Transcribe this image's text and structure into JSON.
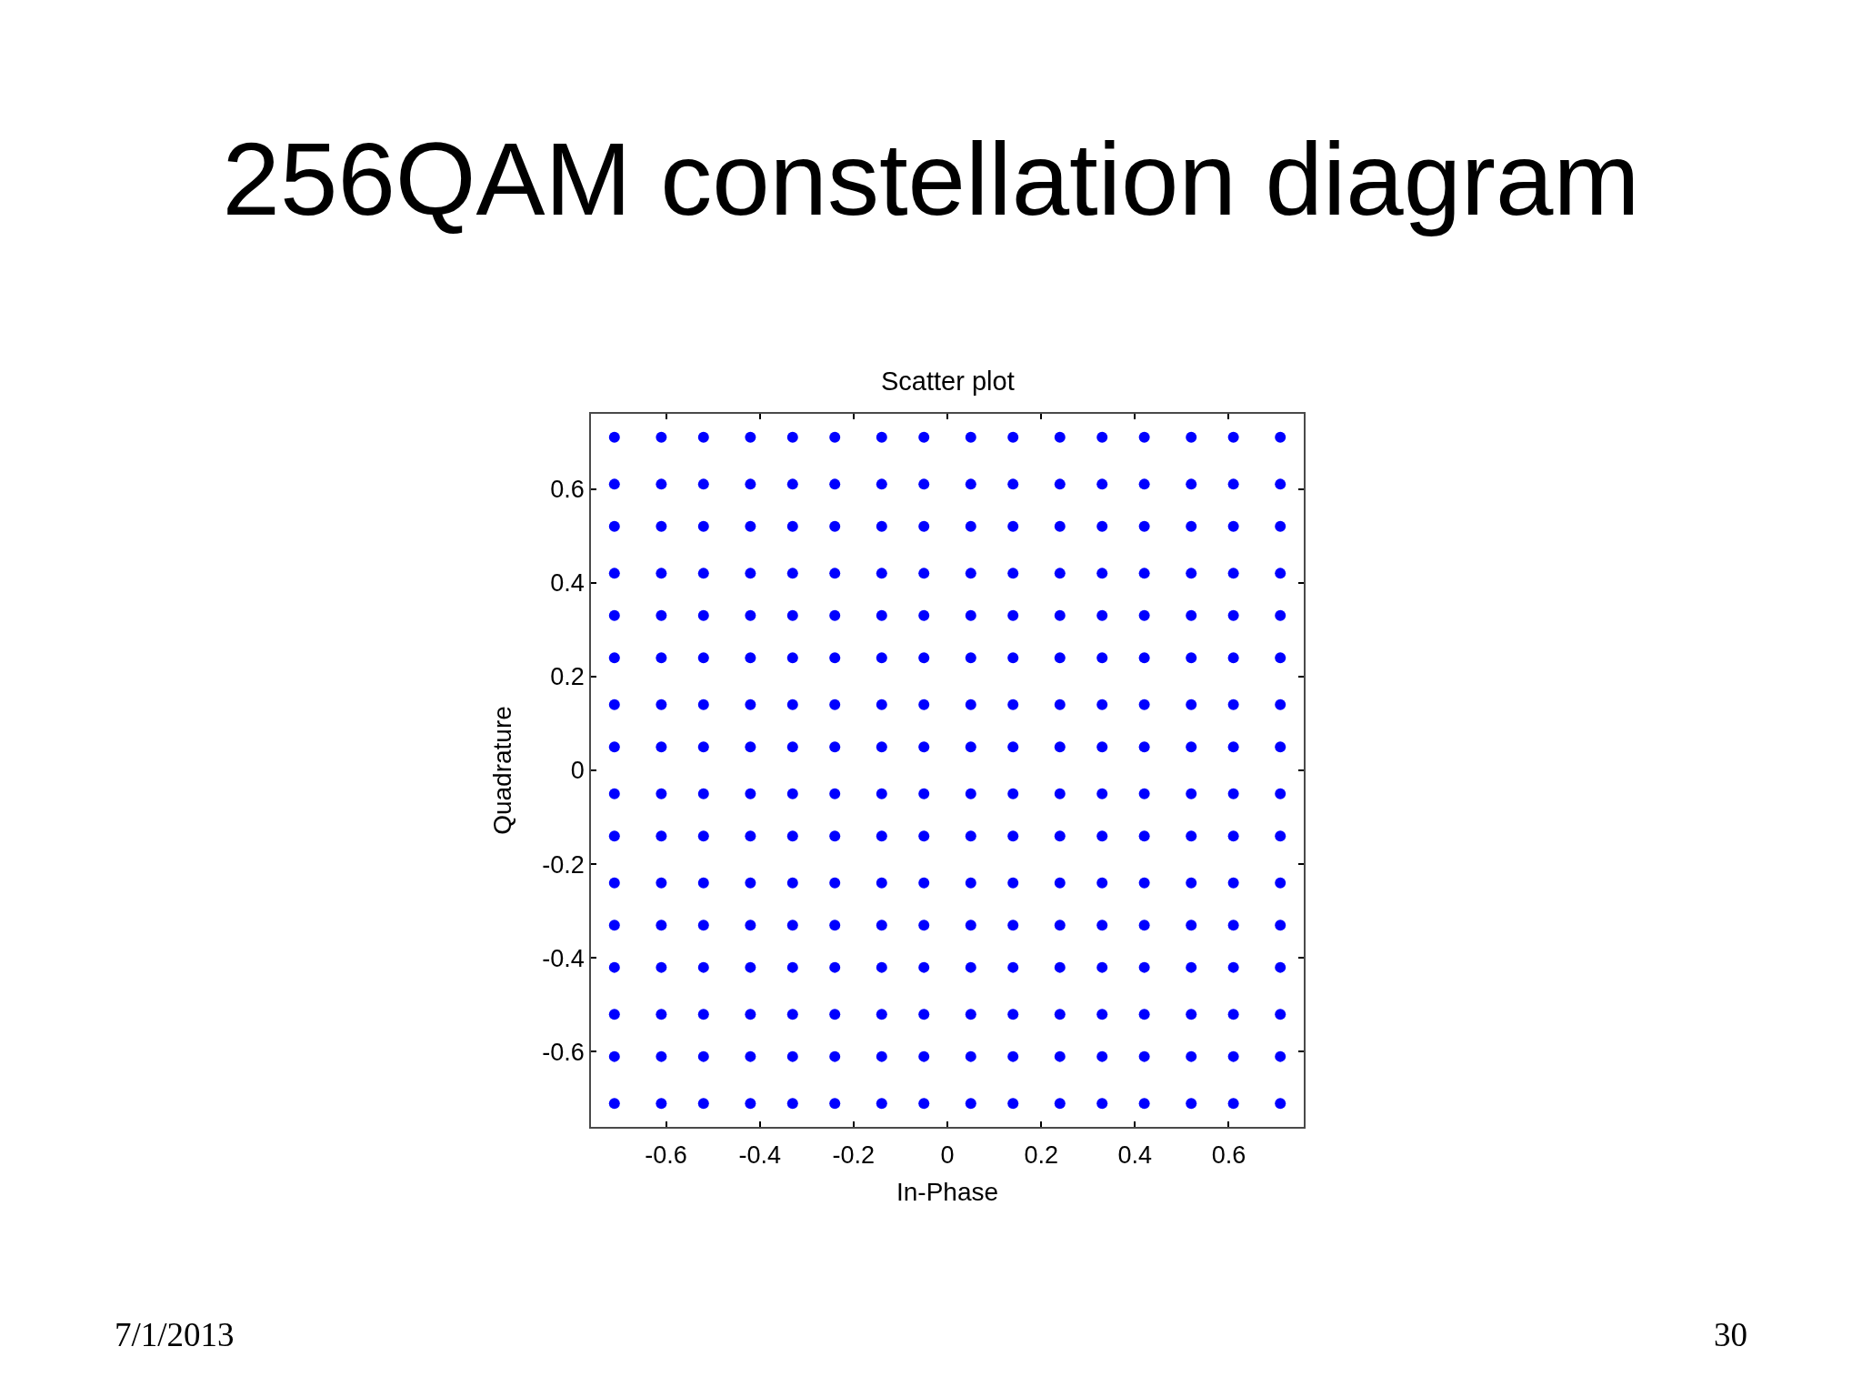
{
  "chart_data": {
    "type": "scatter",
    "title": "256QAM constellation diagram",
    "subtitle": "Scatter plot",
    "xlabel": "In-Phase",
    "ylabel": "Quadrature",
    "annotations": [
      "7/1/2013",
      "30"
    ],
    "xlim": [
      -0.76,
      0.76
    ],
    "ylim": [
      -0.76,
      0.76
    ],
    "xticks": [
      -0.6,
      -0.4,
      -0.2,
      0,
      0.2,
      0.4,
      0.6
    ],
    "yticks": [
      -0.6,
      -0.4,
      -0.2,
      0,
      0.2,
      0.4,
      0.6
    ],
    "marker": "circle",
    "series": [
      {
        "color": "#0000ff",
        "x": [
          -0.71,
          -0.61,
          -0.52,
          -0.42,
          -0.33,
          -0.24,
          -0.14,
          -0.05,
          0.05,
          0.14,
          0.24,
          0.33,
          0.42,
          0.52,
          0.61,
          0.71,
          -0.71,
          -0.61,
          -0.52,
          -0.42,
          -0.33,
          -0.24,
          -0.14,
          -0.05,
          0.05,
          0.14,
          0.24,
          0.33,
          0.42,
          0.52,
          0.61,
          0.71,
          -0.71,
          -0.61,
          -0.52,
          -0.42,
          -0.33,
          -0.24,
          -0.14,
          -0.05,
          0.05,
          0.14,
          0.24,
          0.33,
          0.42,
          0.52,
          0.61,
          0.71,
          -0.71,
          -0.61,
          -0.52,
          -0.42,
          -0.33,
          -0.24,
          -0.14,
          -0.05,
          0.05,
          0.14,
          0.24,
          0.33,
          0.42,
          0.52,
          0.61,
          0.71,
          -0.71,
          -0.61,
          -0.52,
          -0.42,
          -0.33,
          -0.24,
          -0.14,
          -0.05,
          0.05,
          0.14,
          0.24,
          0.33,
          0.42,
          0.52,
          0.61,
          0.71,
          -0.71,
          -0.61,
          -0.52,
          -0.42,
          -0.33,
          -0.24,
          -0.14,
          -0.05,
          0.05,
          0.14,
          0.24,
          0.33,
          0.42,
          0.52,
          0.61,
          0.71,
          -0.71,
          -0.61,
          -0.52,
          -0.42,
          -0.33,
          -0.24,
          -0.14,
          -0.05,
          0.05,
          0.14,
          0.24,
          0.33,
          0.42,
          0.52,
          0.61,
          0.71,
          -0.71,
          -0.61,
          -0.52,
          -0.42,
          -0.33,
          -0.24,
          -0.14,
          -0.05,
          0.05,
          0.14,
          0.24,
          0.33,
          0.42,
          0.52,
          0.61,
          0.71,
          -0.71,
          -0.61,
          -0.52,
          -0.42,
          -0.33,
          -0.24,
          -0.14,
          -0.05,
          0.05,
          0.14,
          0.24,
          0.33,
          0.42,
          0.52,
          0.61,
          0.71,
          -0.71,
          -0.61,
          -0.52,
          -0.42,
          -0.33,
          -0.24,
          -0.14,
          -0.05,
          0.05,
          0.14,
          0.24,
          0.33,
          0.42,
          0.52,
          0.61,
          0.71,
          -0.71,
          -0.61,
          -0.52,
          -0.42,
          -0.33,
          -0.24,
          -0.14,
          -0.05,
          0.05,
          0.14,
          0.24,
          0.33,
          0.42,
          0.52,
          0.61,
          0.71,
          -0.71,
          -0.61,
          -0.52,
          -0.42,
          -0.33,
          -0.24,
          -0.14,
          -0.05,
          0.05,
          0.14,
          0.24,
          0.33,
          0.42,
          0.52,
          0.61,
          0.71,
          -0.71,
          -0.61,
          -0.52,
          -0.42,
          -0.33,
          -0.24,
          -0.14,
          -0.05,
          0.05,
          0.14,
          0.24,
          0.33,
          0.42,
          0.52,
          0.61,
          0.71,
          -0.71,
          -0.61,
          -0.52,
          -0.42,
          -0.33,
          -0.24,
          -0.14,
          -0.05,
          0.05,
          0.14,
          0.24,
          0.33,
          0.42,
          0.52,
          0.61,
          0.71,
          -0.71,
          -0.61,
          -0.52,
          -0.42,
          -0.33,
          -0.24,
          -0.14,
          -0.05,
          0.05,
          0.14,
          0.24,
          0.33,
          0.42,
          0.52,
          0.61,
          0.71,
          -0.71,
          -0.61,
          -0.52,
          -0.42,
          -0.33,
          -0.24,
          -0.14,
          -0.05,
          0.05,
          0.14,
          0.24,
          0.33,
          0.42,
          0.52,
          0.61,
          0.71
        ],
        "values": [
          0.71,
          0.71,
          0.71,
          0.71,
          0.71,
          0.71,
          0.71,
          0.71,
          0.71,
          0.71,
          0.71,
          0.71,
          0.71,
          0.71,
          0.71,
          0.71,
          0.61,
          0.61,
          0.61,
          0.61,
          0.61,
          0.61,
          0.61,
          0.61,
          0.61,
          0.61,
          0.61,
          0.61,
          0.61,
          0.61,
          0.61,
          0.61,
          0.52,
          0.52,
          0.52,
          0.52,
          0.52,
          0.52,
          0.52,
          0.52,
          0.52,
          0.52,
          0.52,
          0.52,
          0.52,
          0.52,
          0.52,
          0.52,
          0.42,
          0.42,
          0.42,
          0.42,
          0.42,
          0.42,
          0.42,
          0.42,
          0.42,
          0.42,
          0.42,
          0.42,
          0.42,
          0.42,
          0.42,
          0.42,
          0.33,
          0.33,
          0.33,
          0.33,
          0.33,
          0.33,
          0.33,
          0.33,
          0.33,
          0.33,
          0.33,
          0.33,
          0.33,
          0.33,
          0.33,
          0.33,
          0.24,
          0.24,
          0.24,
          0.24,
          0.24,
          0.24,
          0.24,
          0.24,
          0.24,
          0.24,
          0.24,
          0.24,
          0.24,
          0.24,
          0.24,
          0.24,
          0.14,
          0.14,
          0.14,
          0.14,
          0.14,
          0.14,
          0.14,
          0.14,
          0.14,
          0.14,
          0.14,
          0.14,
          0.14,
          0.14,
          0.14,
          0.14,
          0.05,
          0.05,
          0.05,
          0.05,
          0.05,
          0.05,
          0.05,
          0.05,
          0.05,
          0.05,
          0.05,
          0.05,
          0.05,
          0.05,
          0.05,
          0.05,
          -0.05,
          -0.05,
          -0.05,
          -0.05,
          -0.05,
          -0.05,
          -0.05,
          -0.05,
          -0.05,
          -0.05,
          -0.05,
          -0.05,
          -0.05,
          -0.05,
          -0.05,
          -0.05,
          -0.14,
          -0.14,
          -0.14,
          -0.14,
          -0.14,
          -0.14,
          -0.14,
          -0.14,
          -0.14,
          -0.14,
          -0.14,
          -0.14,
          -0.14,
          -0.14,
          -0.14,
          -0.14,
          -0.24,
          -0.24,
          -0.24,
          -0.24,
          -0.24,
          -0.24,
          -0.24,
          -0.24,
          -0.24,
          -0.24,
          -0.24,
          -0.24,
          -0.24,
          -0.24,
          -0.24,
          -0.24,
          -0.33,
          -0.33,
          -0.33,
          -0.33,
          -0.33,
          -0.33,
          -0.33,
          -0.33,
          -0.33,
          -0.33,
          -0.33,
          -0.33,
          -0.33,
          -0.33,
          -0.33,
          -0.33,
          -0.42,
          -0.42,
          -0.42,
          -0.42,
          -0.42,
          -0.42,
          -0.42,
          -0.42,
          -0.42,
          -0.42,
          -0.42,
          -0.42,
          -0.42,
          -0.42,
          -0.42,
          -0.42,
          -0.52,
          -0.52,
          -0.52,
          -0.52,
          -0.52,
          -0.52,
          -0.52,
          -0.52,
          -0.52,
          -0.52,
          -0.52,
          -0.52,
          -0.52,
          -0.52,
          -0.52,
          -0.52,
          -0.61,
          -0.61,
          -0.61,
          -0.61,
          -0.61,
          -0.61,
          -0.61,
          -0.61,
          -0.61,
          -0.61,
          -0.61,
          -0.61,
          -0.61,
          -0.61,
          -0.61,
          -0.61,
          -0.71,
          -0.71,
          -0.71,
          -0.71,
          -0.71,
          -0.71,
          -0.71,
          -0.71,
          -0.71,
          -0.71,
          -0.71,
          -0.71,
          -0.71,
          -0.71,
          -0.71,
          -0.71
        ]
      }
    ]
  }
}
